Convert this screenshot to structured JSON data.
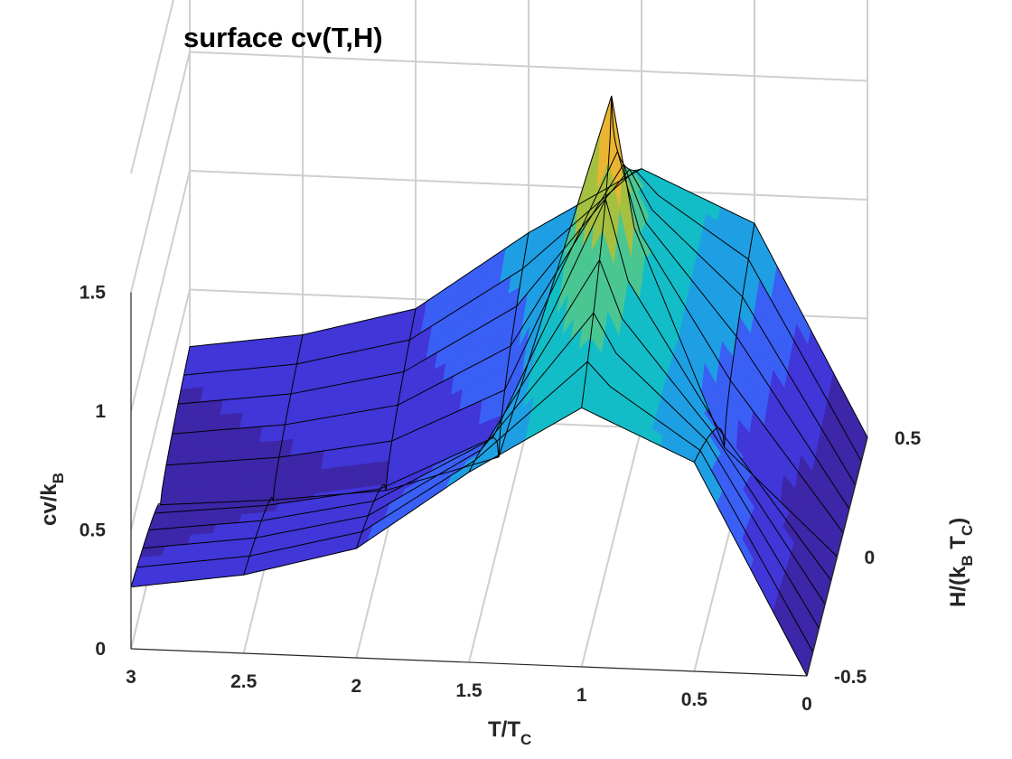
{
  "chart_data": {
    "type": "surface",
    "title": "surface cv(T,H)",
    "xlabel": {
      "main": "T/T",
      "sub": "C"
    },
    "ylabel": {
      "part1": "H/(k",
      "sub1": "B",
      "part2": " T",
      "sub2": "C",
      "part3": ")"
    },
    "zlabel": {
      "main": "cv/k",
      "sub": "B"
    },
    "xlim": [
      0,
      3
    ],
    "ylim": [
      -0.5,
      0.5
    ],
    "zlim": [
      0,
      1.5
    ],
    "x_ticks": [
      3,
      2.5,
      2,
      1.5,
      1,
      0.5,
      0
    ],
    "x_tick_labels": [
      "3",
      "2.5",
      "2",
      "1.5",
      "1",
      "0.5",
      "0"
    ],
    "y_ticks": [
      0.5,
      0,
      -0.5
    ],
    "y_tick_labels": [
      "0.5",
      "0",
      "-0.5"
    ],
    "z_ticks": [
      0,
      0.5,
      1,
      1.5
    ],
    "z_tick_labels": [
      "0",
      "0.5",
      "1",
      "1.5"
    ],
    "grid": true,
    "colormap": "parula",
    "peak": {
      "T": 1.0,
      "H": 0.0,
      "cv": 1.9
    },
    "mesh_T": [
      0,
      0.5,
      1.0,
      1.5,
      2.0,
      2.5,
      3.0
    ],
    "mesh_H": [
      -0.5,
      -0.4,
      -0.3,
      -0.2,
      -0.1,
      0.0,
      0.1,
      0.2,
      0.3,
      0.4,
      0.5
    ],
    "cv_at_H_zero": [
      {
        "T": 0.5,
        "cv": 0.44
      },
      {
        "T": 0.9,
        "cv": 1.35
      },
      {
        "T": 1.0,
        "cv": 1.9
      },
      {
        "T": 1.5,
        "cv": 0.36
      },
      {
        "T": 2.0,
        "cv": 0.2
      },
      {
        "T": 2.5,
        "cv": 0.14
      },
      {
        "T": 3.0,
        "cv": 0.1
      }
    ],
    "cv_at_H_max": [
      {
        "T": 0.5,
        "cv": 0.88
      },
      {
        "T": 1.0,
        "cv": 1.09
      },
      {
        "T": 1.5,
        "cv": 0.8
      },
      {
        "T": 2.0,
        "cv": 0.46
      },
      {
        "T": 2.5,
        "cv": 0.33
      },
      {
        "T": 3.0,
        "cv": 0.26
      }
    ]
  }
}
